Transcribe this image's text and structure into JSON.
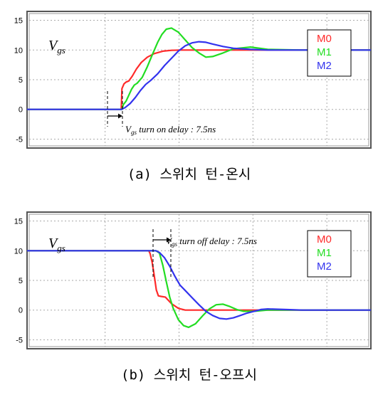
{
  "chart_data": [
    {
      "type": "line",
      "panel": "a",
      "caption": "(a) 스위치 턴-온시",
      "ylabel": "Vgs",
      "ylabel_main": "V",
      "ylabel_sub": "gs",
      "ylim": [
        -6.5,
        16.5
      ],
      "yticks": [
        "15",
        "10",
        "5",
        "0",
        "-5"
      ],
      "ytick_values": [
        15,
        10,
        5,
        0,
        -5
      ],
      "xlim": [
        0,
        100
      ],
      "grid": true,
      "legend_position": "top-right",
      "annotation": {
        "text_main": "V",
        "text_sub": "gs",
        "text_rest": " turn on delay : 7.5ns"
      },
      "series": [
        {
          "name": "M0",
          "color": "#ff2a2a",
          "x": [
            0,
            27.4,
            27.6,
            28.2,
            28.8,
            29.6,
            30.6,
            31.8,
            33.2,
            35,
            37,
            39.5,
            42,
            45,
            50,
            60,
            80,
            100
          ],
          "y": [
            0,
            0,
            3.5,
            4.3,
            4.6,
            4.8,
            5.6,
            6.8,
            7.9,
            8.8,
            9.4,
            9.8,
            9.95,
            10,
            10,
            10,
            10,
            10
          ]
        },
        {
          "name": "M1",
          "color": "#22dd22",
          "x": [
            0,
            27.6,
            28,
            28.8,
            29.6,
            30.4,
            31.2,
            32,
            33.5,
            35,
            36.5,
            38,
            39.2,
            40.5,
            42,
            44,
            46,
            48,
            50,
            52,
            54,
            57,
            60,
            65,
            70,
            80,
            100
          ],
          "y": [
            0,
            0,
            0.8,
            1.4,
            2.4,
            3.4,
            4.1,
            4.4,
            5.4,
            7.2,
            9.3,
            11.3,
            12.6,
            13.5,
            13.7,
            13.0,
            11.7,
            10.4,
            9.5,
            8.8,
            8.9,
            9.5,
            10.2,
            10.5,
            10.1,
            10,
            10
          ]
        },
        {
          "name": "M2",
          "color": "#3333ee",
          "x": [
            0,
            27.5,
            28.5,
            30,
            31.5,
            33,
            34.5,
            36,
            38,
            40,
            42,
            44,
            46,
            48,
            50,
            52,
            54,
            57,
            60,
            65,
            70,
            75,
            80,
            100
          ],
          "y": [
            0,
            0,
            0.3,
            1.0,
            2.0,
            3.2,
            4.2,
            4.9,
            6.0,
            7.4,
            8.6,
            9.8,
            10.7,
            11.2,
            11.4,
            11.3,
            11.0,
            10.6,
            10.3,
            10.1,
            10,
            10,
            10,
            10
          ]
        }
      ]
    },
    {
      "type": "line",
      "panel": "b",
      "caption": "(b) 스위치 턴-오프시",
      "ylabel": "Vgs",
      "ylabel_main": "V",
      "ylabel_sub": "gs",
      "ylim": [
        -6.5,
        16.5
      ],
      "yticks": [
        "15",
        "10",
        "5",
        "0",
        "-5"
      ],
      "ytick_values": [
        15,
        10,
        5,
        0,
        -5
      ],
      "xlim": [
        0,
        100
      ],
      "grid": true,
      "legend_position": "top-right",
      "annotation": {
        "text_main": "V",
        "text_sub": "gs",
        "text_rest": " turn off delay : 7.5ns"
      },
      "series": [
        {
          "name": "M0",
          "color": "#ff2a2a",
          "x": [
            0,
            35.4,
            35.8,
            36.4,
            37,
            37.6,
            38.2,
            39,
            40.2,
            42,
            44,
            46,
            48,
            52,
            60,
            70,
            80,
            100
          ],
          "y": [
            10,
            10,
            9.5,
            8.0,
            5.8,
            3.4,
            2.4,
            2.3,
            2.2,
            1.1,
            0.3,
            0,
            0,
            0,
            0,
            0,
            0,
            0
          ]
        },
        {
          "name": "M1",
          "color": "#22dd22",
          "x": [
            0,
            36,
            37.5,
            38.5,
            39.5,
            40.5,
            41.5,
            42.5,
            44,
            45.5,
            47,
            49,
            51,
            53,
            55,
            57,
            59,
            61,
            63,
            66,
            70,
            80,
            100
          ],
          "y": [
            10,
            10,
            10,
            9.6,
            7.5,
            4.8,
            2.2,
            0.3,
            -1.6,
            -2.6,
            -2.9,
            -2.3,
            -1.0,
            0.2,
            0.9,
            1.0,
            0.6,
            0.1,
            -0.2,
            -0.2,
            0,
            0,
            0
          ]
        },
        {
          "name": "M2",
          "color": "#3333ee",
          "x": [
            0,
            37.5,
            38.5,
            40,
            41.5,
            43,
            44.5,
            46,
            48,
            50,
            52,
            54,
            56,
            58,
            60,
            62,
            64,
            66,
            68,
            70,
            75,
            80,
            100
          ],
          "y": [
            10,
            10,
            9.7,
            8.8,
            7.4,
            5.7,
            4.2,
            3.3,
            2.1,
            0.9,
            -0.2,
            -0.9,
            -1.4,
            -1.5,
            -1.3,
            -0.9,
            -0.5,
            -0.2,
            0.1,
            0.2,
            0.1,
            0,
            0
          ]
        }
      ]
    }
  ]
}
